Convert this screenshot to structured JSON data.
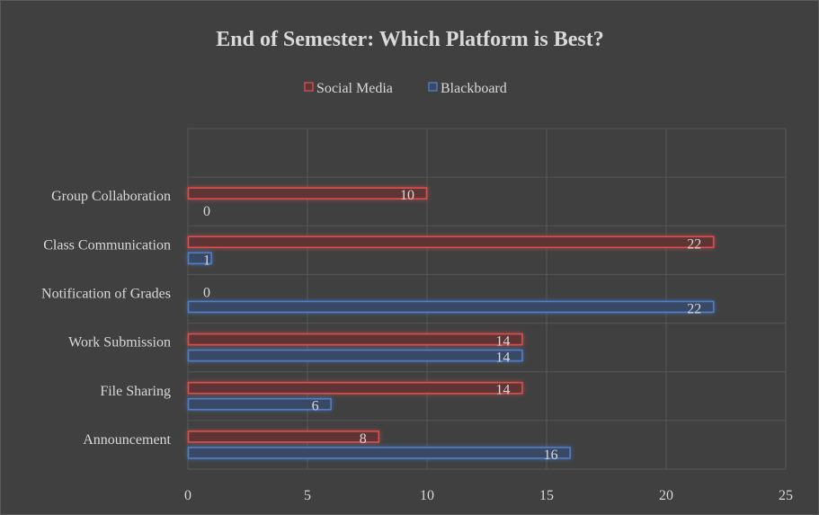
{
  "chart_data": {
    "type": "bar",
    "orientation": "horizontal",
    "title": "End of Semester: Which Platform is Best?",
    "categories": [
      "Announcement",
      "File Sharing",
      "Work Submission",
      "Notification of Grades",
      "Class Communication",
      "Group Collaboration"
    ],
    "series": [
      {
        "name": "Social Media",
        "values": [
          8,
          14,
          14,
          0,
          22,
          10
        ],
        "color": "#d9504e",
        "fill": "#5e3434"
      },
      {
        "name": "Blackboard",
        "values": [
          16,
          6,
          14,
          22,
          1,
          0
        ],
        "color": "#4f7fc8",
        "fill": "#394965"
      }
    ],
    "xlim": [
      0,
      25
    ],
    "xticks": [
      0,
      5,
      10,
      15,
      20,
      25
    ],
    "xlabel": "",
    "ylabel": "",
    "grid": true,
    "legend": "top",
    "data_labels": true,
    "background": "#404040"
  }
}
